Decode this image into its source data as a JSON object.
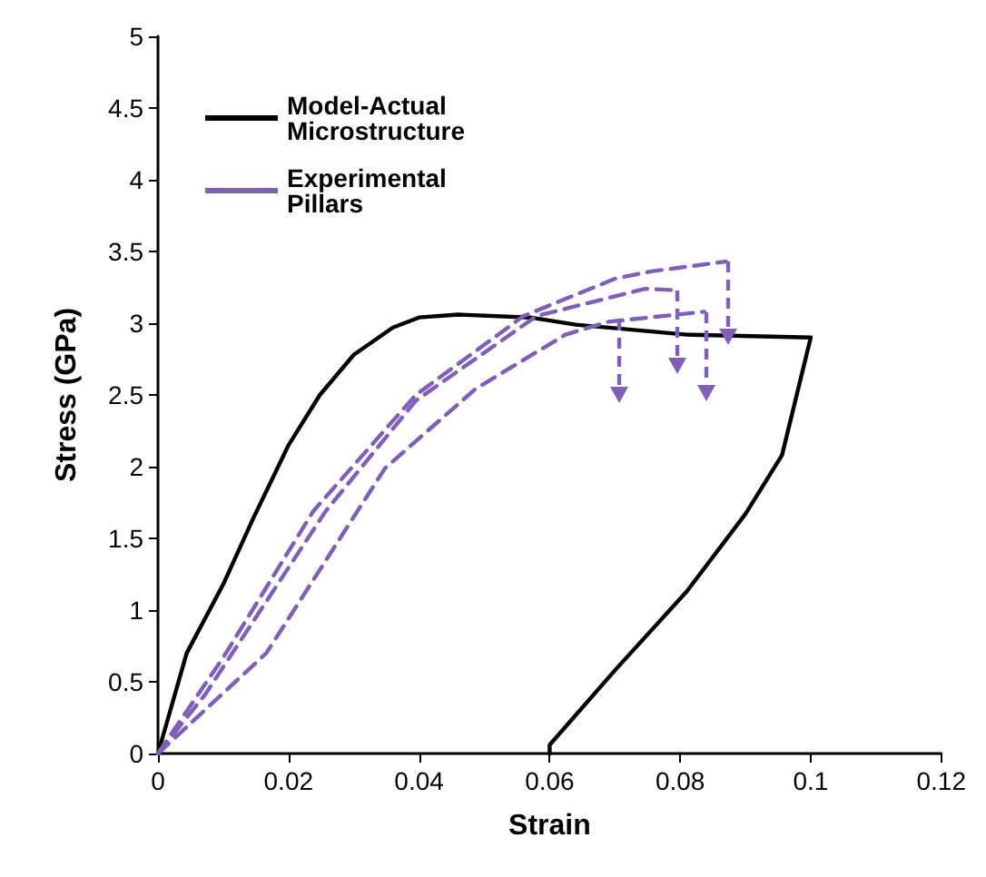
{
  "chart_data": {
    "type": "line",
    "xlabel": "Strain",
    "ylabel": "Stress (GPa)",
    "xlim": [
      0,
      0.12
    ],
    "ylim": [
      0,
      5
    ],
    "xticks": [
      0,
      0.02,
      0.04,
      0.06,
      0.08,
      0.1,
      0.12
    ],
    "yticks": [
      0,
      0.5,
      1,
      1.5,
      2,
      2.5,
      3,
      3.5,
      4,
      4.5,
      5
    ],
    "grid": false,
    "legend": "top left",
    "marker": "none",
    "series": [
      {
        "name": "Model-Actual Microstructure",
        "color": "#000000",
        "line_style": "solid",
        "x": [
          0,
          0.0044,
          0.01,
          0.0146,
          0.02,
          0.0248,
          0.03,
          0.036,
          0.04,
          0.046,
          0.057,
          0.064,
          0.081,
          0.1,
          0.0956,
          0.09,
          0.081,
          0.07,
          0.06,
          0.06
        ],
        "values": [
          0,
          0.7,
          1.18,
          1.64,
          2.15,
          2.5,
          2.78,
          2.97,
          3.04,
          3.06,
          3.04,
          2.99,
          2.92,
          2.9,
          2.08,
          1.67,
          1.13,
          0.58,
          0.06,
          0
        ]
      },
      {
        "name": "Experimental Pillars",
        "color": "#7f5fb8",
        "line_style": "dashed",
        "x": [
          0,
          0.01,
          0.0238,
          0.0395,
          0.056,
          0.07,
          0.0754,
          0.087
        ],
        "values": [
          0,
          0.67,
          1.69,
          2.5,
          3.05,
          3.31,
          3.36,
          3.43
        ]
      },
      {
        "color": "#7f5fb8",
        "line_style": "dashed",
        "x": [
          0,
          0.0072,
          0.0257,
          0.0395,
          0.058,
          0.0746,
          0.0793
        ],
        "values": [
          0,
          0.41,
          1.69,
          2.46,
          3.05,
          3.24,
          3.23
        ]
      },
      {
        "color": "#7f5fb8",
        "line_style": "dashed",
        "x": [
          0,
          0.0166,
          0.0348,
          0.0486,
          0.0624,
          0.069,
          0.0837
        ],
        "values": [
          0,
          0.7,
          1.99,
          2.54,
          2.92,
          3.01,
          3.08
        ]
      }
    ]
  }
}
